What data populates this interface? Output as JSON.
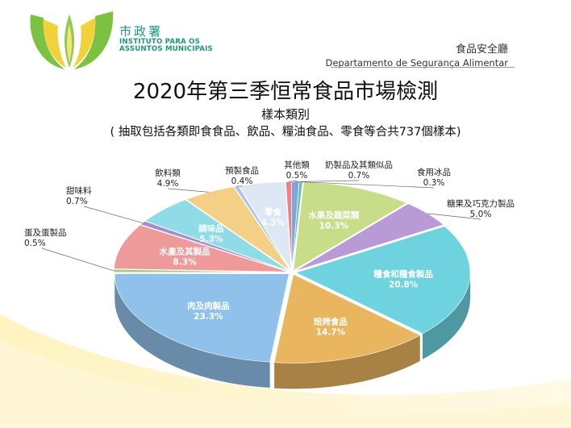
{
  "header": {
    "org_name_zh": "市政署",
    "org_name_pt_line1": "INSTITUTO PARA OS",
    "org_name_pt_line2": "ASSUNTOS MUNICIPAIS",
    "dept_zh": "食品安全廳",
    "dept_pt": "Departamento de Segurança Alimentar"
  },
  "colors": {
    "brand_green": "#1a9a7a",
    "logo_yellow": "#f2d23a",
    "logo_green": "#7cc242"
  },
  "chart_data": {
    "type": "pie",
    "title": "2020年第三季恒常食品市場檢測",
    "subtitle": "樣本類別",
    "note": "( 抽取包括各類即食食品、飲品、糧油食品、零食等合共737個樣本)",
    "unit": "%",
    "slices": [
      {
        "label": "其他類",
        "value": 0.5,
        "display": "0.5%",
        "color": "#f07f80"
      },
      {
        "label": "奶製品及其類似品",
        "value": 0.7,
        "display": "0.7%",
        "color": "#7ea6de"
      },
      {
        "label": "食用冰品",
        "value": 0.3,
        "display": "0.3%",
        "color": "#66c2a0"
      },
      {
        "label": "水果及蔬菜類",
        "value": 10.3,
        "display": "10.3%",
        "color": "#c8dd8a"
      },
      {
        "label": "糖果及巧克力製品",
        "value": 5.0,
        "display": "5.0%",
        "color": "#b79ad6"
      },
      {
        "label": "糧食和糧食製品",
        "value": 20.8,
        "display": "20.8%",
        "color": "#6fd3df"
      },
      {
        "label": "焙烤食品",
        "value": 14.7,
        "display": "14.7%",
        "color": "#e9b55f"
      },
      {
        "label": "肉及肉製品",
        "value": 23.3,
        "display": "23.3%",
        "color": "#8fc1ea"
      },
      {
        "label": "蛋及蛋製品",
        "value": 0.5,
        "display": "0.5%",
        "color": "#a9c97a"
      },
      {
        "label": "水產及其製品",
        "value": 8.3,
        "display": "8.3%",
        "color": "#ee9a9a"
      },
      {
        "label": "甜味料",
        "value": 0.7,
        "display": "0.7%",
        "color": "#a38dce"
      },
      {
        "label": "調味品",
        "value": 5.3,
        "display": "5.3%",
        "color": "#8fdbe6"
      },
      {
        "label": "飲料類",
        "value": 4.9,
        "display": "4.9%",
        "color": "#f4cf86"
      },
      {
        "label": "預製食品",
        "value": 0.4,
        "display": "0.4%",
        "color": "#aac6ea"
      },
      {
        "label": "零食",
        "value": 4.3,
        "display": "4.3%",
        "color": "#dde8f4"
      }
    ]
  }
}
